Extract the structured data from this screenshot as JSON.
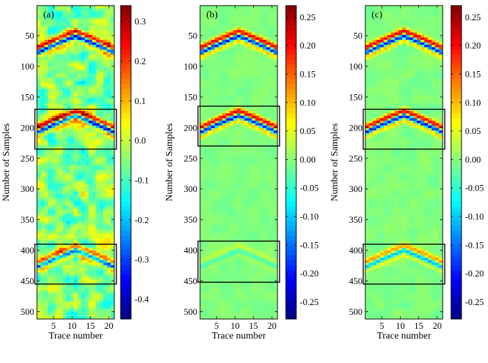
{
  "chart_data": [
    {
      "type": "heatmap",
      "panel_label": "(a)",
      "xlabel": "Trace number",
      "ylabel": "Number of Samples",
      "xlim": [
        0.5,
        21.5
      ],
      "ylim": [
        1,
        512
      ],
      "x_ticks": [
        "5",
        "10",
        "15",
        "20"
      ],
      "y_ticks": [
        "50",
        "100",
        "150",
        "200",
        "250",
        "300",
        "350",
        "400",
        "450",
        "500"
      ],
      "color_range": [
        -0.45,
        0.34
      ],
      "colorbar_ticks": [
        "0.3",
        "0.2",
        "0.1",
        "0.0",
        "-0.1",
        "-0.2",
        "-0.3",
        "-0.4"
      ],
      "colorbar_tick_values": [
        0.3,
        0.2,
        0.1,
        0.0,
        -0.1,
        -0.2,
        -0.3,
        -0.4
      ],
      "noise_level": 0.35,
      "events": [
        {
          "apex_trace": 11,
          "apex_sample": 50,
          "amplitude": 1.0
        },
        {
          "apex_trace": 11,
          "apex_sample": 180,
          "amplitude": 1.0
        },
        {
          "apex_trace": 11,
          "apex_sample": 400,
          "amplitude": 0.7
        }
      ],
      "boxes": [
        {
          "sample_range": [
            170,
            235
          ]
        },
        {
          "sample_range": [
            390,
            455
          ]
        }
      ]
    },
    {
      "type": "heatmap",
      "panel_label": "(b)",
      "xlabel": "Trace number",
      "ylabel": "Number of Samples",
      "xlim": [
        0.5,
        21.5
      ],
      "ylim": [
        1,
        512
      ],
      "x_ticks": [
        "5",
        "10",
        "15",
        "20"
      ],
      "y_ticks": [
        "50",
        "100",
        "150",
        "200",
        "250",
        "300",
        "350",
        "400",
        "450",
        "500"
      ],
      "color_range": [
        -0.28,
        0.27
      ],
      "colorbar_ticks": [
        "0.25",
        "0.20",
        "0.15",
        "0.10",
        "0.05",
        "0.00",
        "-0.05",
        "-0.10",
        "-0.15",
        "-0.20",
        "-0.25"
      ],
      "colorbar_tick_values": [
        0.25,
        0.2,
        0.15,
        0.1,
        0.05,
        0.0,
        -0.05,
        -0.1,
        -0.15,
        -0.2,
        -0.25
      ],
      "noise_level": 0.05,
      "events": [
        {
          "apex_trace": 11,
          "apex_sample": 50,
          "amplitude": 1.0
        },
        {
          "apex_trace": 11,
          "apex_sample": 180,
          "amplitude": 1.0
        },
        {
          "apex_trace": 11,
          "apex_sample": 400,
          "amplitude": 0.15
        }
      ],
      "boxes": [
        {
          "sample_range": [
            165,
            230
          ]
        },
        {
          "sample_range": [
            385,
            452
          ]
        }
      ]
    },
    {
      "type": "heatmap",
      "panel_label": "(c)",
      "xlabel": "Trace number",
      "ylabel": "Number of Samples",
      "xlim": [
        0.5,
        21.5
      ],
      "ylim": [
        1,
        512
      ],
      "x_ticks": [
        "5",
        "10",
        "15",
        "20"
      ],
      "y_ticks": [
        "50",
        "100",
        "150",
        "200",
        "250",
        "300",
        "350",
        "400",
        "450",
        "500"
      ],
      "color_range": [
        -0.28,
        0.27
      ],
      "colorbar_ticks": [
        "0.25",
        "0.20",
        "0.15",
        "0.10",
        "0.05",
        "0.00",
        "-0.05",
        "-0.10",
        "-0.15",
        "-0.20",
        "-0.25"
      ],
      "colorbar_tick_values": [
        0.25,
        0.2,
        0.15,
        0.1,
        0.05,
        0.0,
        -0.05,
        -0.1,
        -0.15,
        -0.2,
        -0.25
      ],
      "noise_level": 0.06,
      "events": [
        {
          "apex_trace": 11,
          "apex_sample": 50,
          "amplitude": 1.0
        },
        {
          "apex_trace": 11,
          "apex_sample": 180,
          "amplitude": 1.0
        },
        {
          "apex_trace": 11,
          "apex_sample": 400,
          "amplitude": 0.55
        }
      ],
      "boxes": [
        {
          "sample_range": [
            170,
            235
          ]
        },
        {
          "sample_range": [
            390,
            455
          ]
        }
      ]
    }
  ]
}
